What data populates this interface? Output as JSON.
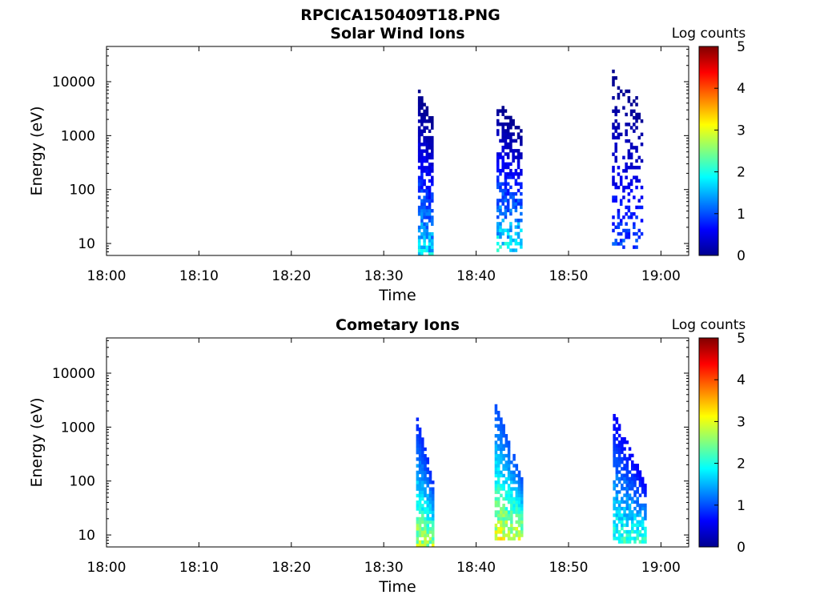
{
  "figure_title": "RPCICA150409T18.PNG",
  "colormap": [
    "#00008f",
    "#0000ff",
    "#0080ff",
    "#00ffff",
    "#80ff80",
    "#ffff00",
    "#ff8000",
    "#ff0000",
    "#800000"
  ],
  "chart_data": [
    {
      "type": "heatmap",
      "title": "Solar Wind Ions",
      "xlabel": "Time",
      "ylabel": "Energy (eV)",
      "xlim": [
        0,
        63
      ],
      "x_unit": "minutes after 18:00",
      "x_ticks": [
        "18:00",
        "18:10",
        "18:20",
        "18:30",
        "18:40",
        "18:50",
        "19:00"
      ],
      "y_scale": "log",
      "ylim": [
        6,
        45000
      ],
      "y_ticks": [
        "10",
        "100",
        "1000",
        "10000"
      ],
      "colorbar": {
        "label": "Log counts",
        "range": [
          0,
          5
        ],
        "ticks": [
          "0",
          "1",
          "2",
          "3",
          "4",
          "5"
        ]
      },
      "clusters": [
        {
          "t_start": 33.7,
          "t_end": 35.2,
          "e_top": 6500,
          "e_bottom": 6,
          "log_counts": [
            0,
            2.1
          ],
          "density": 0.75
        },
        {
          "t_start": 42.2,
          "t_end": 44.8,
          "e_top": 4000,
          "e_bottom": 7,
          "log_counts": [
            0,
            2.3
          ],
          "density": 0.55
        },
        {
          "t_start": 54.7,
          "t_end": 58.0,
          "e_top": 15000,
          "e_bottom": 8,
          "log_counts": [
            0,
            1.2
          ],
          "density": 0.3
        }
      ]
    },
    {
      "type": "heatmap",
      "title": "Cometary Ions",
      "xlabel": "Time",
      "ylabel": "Energy (eV)",
      "xlim": [
        0,
        63
      ],
      "x_unit": "minutes after 18:00",
      "x_ticks": [
        "18:00",
        "18:10",
        "18:20",
        "18:30",
        "18:40",
        "18:50",
        "19:00"
      ],
      "y_scale": "log",
      "ylim": [
        6,
        45000
      ],
      "y_ticks": [
        "10",
        "100",
        "1000",
        "10000"
      ],
      "colorbar": {
        "label": "Log counts",
        "range": [
          0,
          5
        ],
        "ticks": [
          "0",
          "1",
          "2",
          "3",
          "4",
          "5"
        ]
      },
      "clusters": [
        {
          "t_start": 33.5,
          "t_end": 35.3,
          "e_top": 1400,
          "e_bottom": 6,
          "log_counts": [
            0.8,
            3.2
          ],
          "density": 0.85
        },
        {
          "t_start": 42.0,
          "t_end": 45.0,
          "e_top": 2600,
          "e_bottom": 8,
          "log_counts": [
            1.0,
            3.4
          ],
          "density": 0.8
        },
        {
          "t_start": 54.8,
          "t_end": 58.2,
          "e_top": 1700,
          "e_bottom": 7,
          "log_counts": [
            0.6,
            2.5
          ],
          "density": 0.7
        }
      ]
    }
  ]
}
